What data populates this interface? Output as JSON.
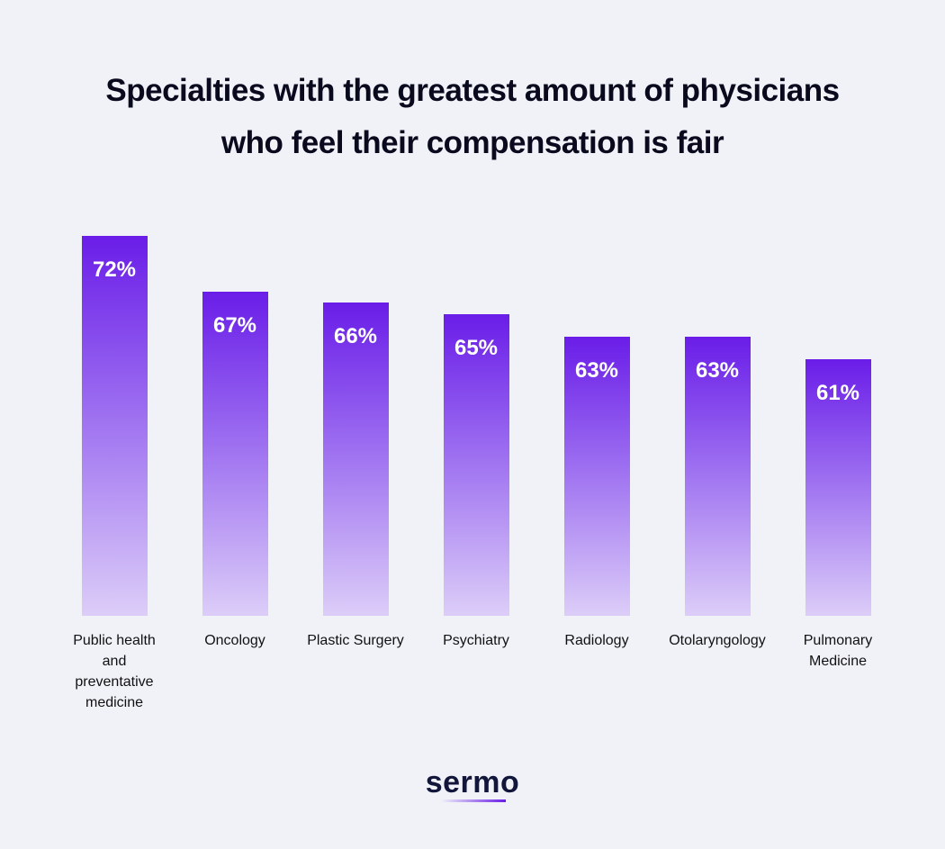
{
  "chart_data": {
    "type": "bar",
    "title": "Specialties with the greatest amount of physicians who feel their compensation is fair",
    "categories": [
      "Public health and preventative medicine",
      "Oncology",
      "Plastic Surgery",
      "Psychiatry",
      "Radiology",
      "Otolaryngology",
      "Pulmonary Medicine"
    ],
    "values": [
      72,
      67,
      66,
      65,
      63,
      63,
      61
    ],
    "value_labels": [
      "72%",
      "67%",
      "66%",
      "65%",
      "63%",
      "63%",
      "61%"
    ],
    "color": "#6a1de8",
    "ylim": [
      38,
      72
    ]
  },
  "footer": {
    "logo": "sermo"
  }
}
